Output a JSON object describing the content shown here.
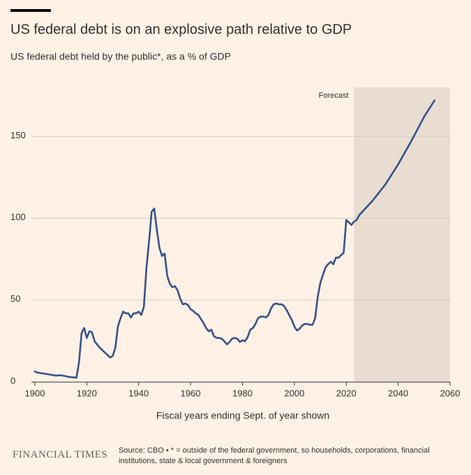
{
  "brand": "FINANCIAL TIMES",
  "source": "Source: CBO • * = outside of the federal government, so households, corporations, financial institutions, state & local government & foreigners",
  "chart_data": {
    "type": "line",
    "title": "US federal debt is on an explosive path relative to GDP",
    "subtitle": "US federal debt held by the public*, as a % of GDP",
    "xlabel": "Fiscal years ending Sept. of year shown",
    "color": "#34528a",
    "grid": true,
    "forecast": {
      "label": "Forecast",
      "range": [
        2023,
        2060
      ],
      "color": "#e9ddd2"
    },
    "xlim": [
      1900,
      2060
    ],
    "xticks": [
      1900,
      1920,
      1940,
      1960,
      1980,
      2000,
      2020,
      2040,
      2060
    ],
    "ylim": [
      0,
      180
    ],
    "yticks": [
      0,
      50,
      100,
      150
    ],
    "x": [
      1900,
      1901,
      1905,
      1908,
      1910,
      1913,
      1916,
      1917,
      1918,
      1919,
      1920,
      1921,
      1922,
      1923,
      1925,
      1927,
      1929,
      1930,
      1931,
      1932,
      1933,
      1934,
      1935,
      1936,
      1937,
      1938,
      1939,
      1940,
      1941,
      1942,
      1943,
      1944,
      1945,
      1946,
      1947,
      1948,
      1949,
      1950,
      1951,
      1952,
      1953,
      1954,
      1955,
      1956,
      1957,
      1958,
      1959,
      1960,
      1961,
      1962,
      1963,
      1964,
      1965,
      1966,
      1967,
      1968,
      1969,
      1970,
      1971,
      1972,
      1973,
      1974,
      1975,
      1976,
      1977,
      1978,
      1979,
      1980,
      1981,
      1982,
      1983,
      1984,
      1985,
      1986,
      1987,
      1988,
      1989,
      1990,
      1991,
      1992,
      1993,
      1994,
      1995,
      1996,
      1997,
      1998,
      1999,
      2000,
      2001,
      2002,
      2003,
      2004,
      2005,
      2006,
      2007,
      2008,
      2009,
      2010,
      2011,
      2012,
      2013,
      2014,
      2015,
      2016,
      2017,
      2018,
      2019,
      2020,
      2021,
      2022,
      2023,
      2024,
      2025,
      2030,
      2035,
      2040,
      2045,
      2050,
      2054
    ],
    "values": [
      6.5,
      5.8,
      4.8,
      4,
      4.2,
      3.2,
      2.7,
      12,
      30,
      33,
      27,
      31,
      30.5,
      25,
      21,
      18,
      15,
      16,
      21,
      34,
      39,
      43,
      42,
      42,
      39.5,
      42,
      42,
      43,
      41,
      46,
      70,
      86,
      104,
      106,
      93,
      82,
      77,
      78.5,
      65,
      60,
      58,
      58.5,
      56,
      51,
      47.5,
      48,
      47,
      44.5,
      43.5,
      42,
      41,
      38.5,
      36,
      33,
      31,
      32,
      28,
      27,
      27,
      26.5,
      25,
      23,
      24.5,
      26.5,
      27,
      26.5,
      24.5,
      25.5,
      25,
      27.5,
      32,
      33,
      35.5,
      39,
      40,
      40,
      39.5,
      41,
      45,
      47.5,
      48,
      47.5,
      47.5,
      46.5,
      44,
      41,
      38,
      34,
      31.5,
      32.5,
      34.5,
      35.5,
      35.5,
      35,
      35,
      39,
      52,
      60.5,
      65.5,
      70,
      72,
      73.5,
      72,
      76,
      76,
      77.5,
      79,
      99,
      97.5,
      96,
      98,
      99,
      102,
      110.5,
      120.5,
      133,
      147,
      162,
      172
    ]
  }
}
